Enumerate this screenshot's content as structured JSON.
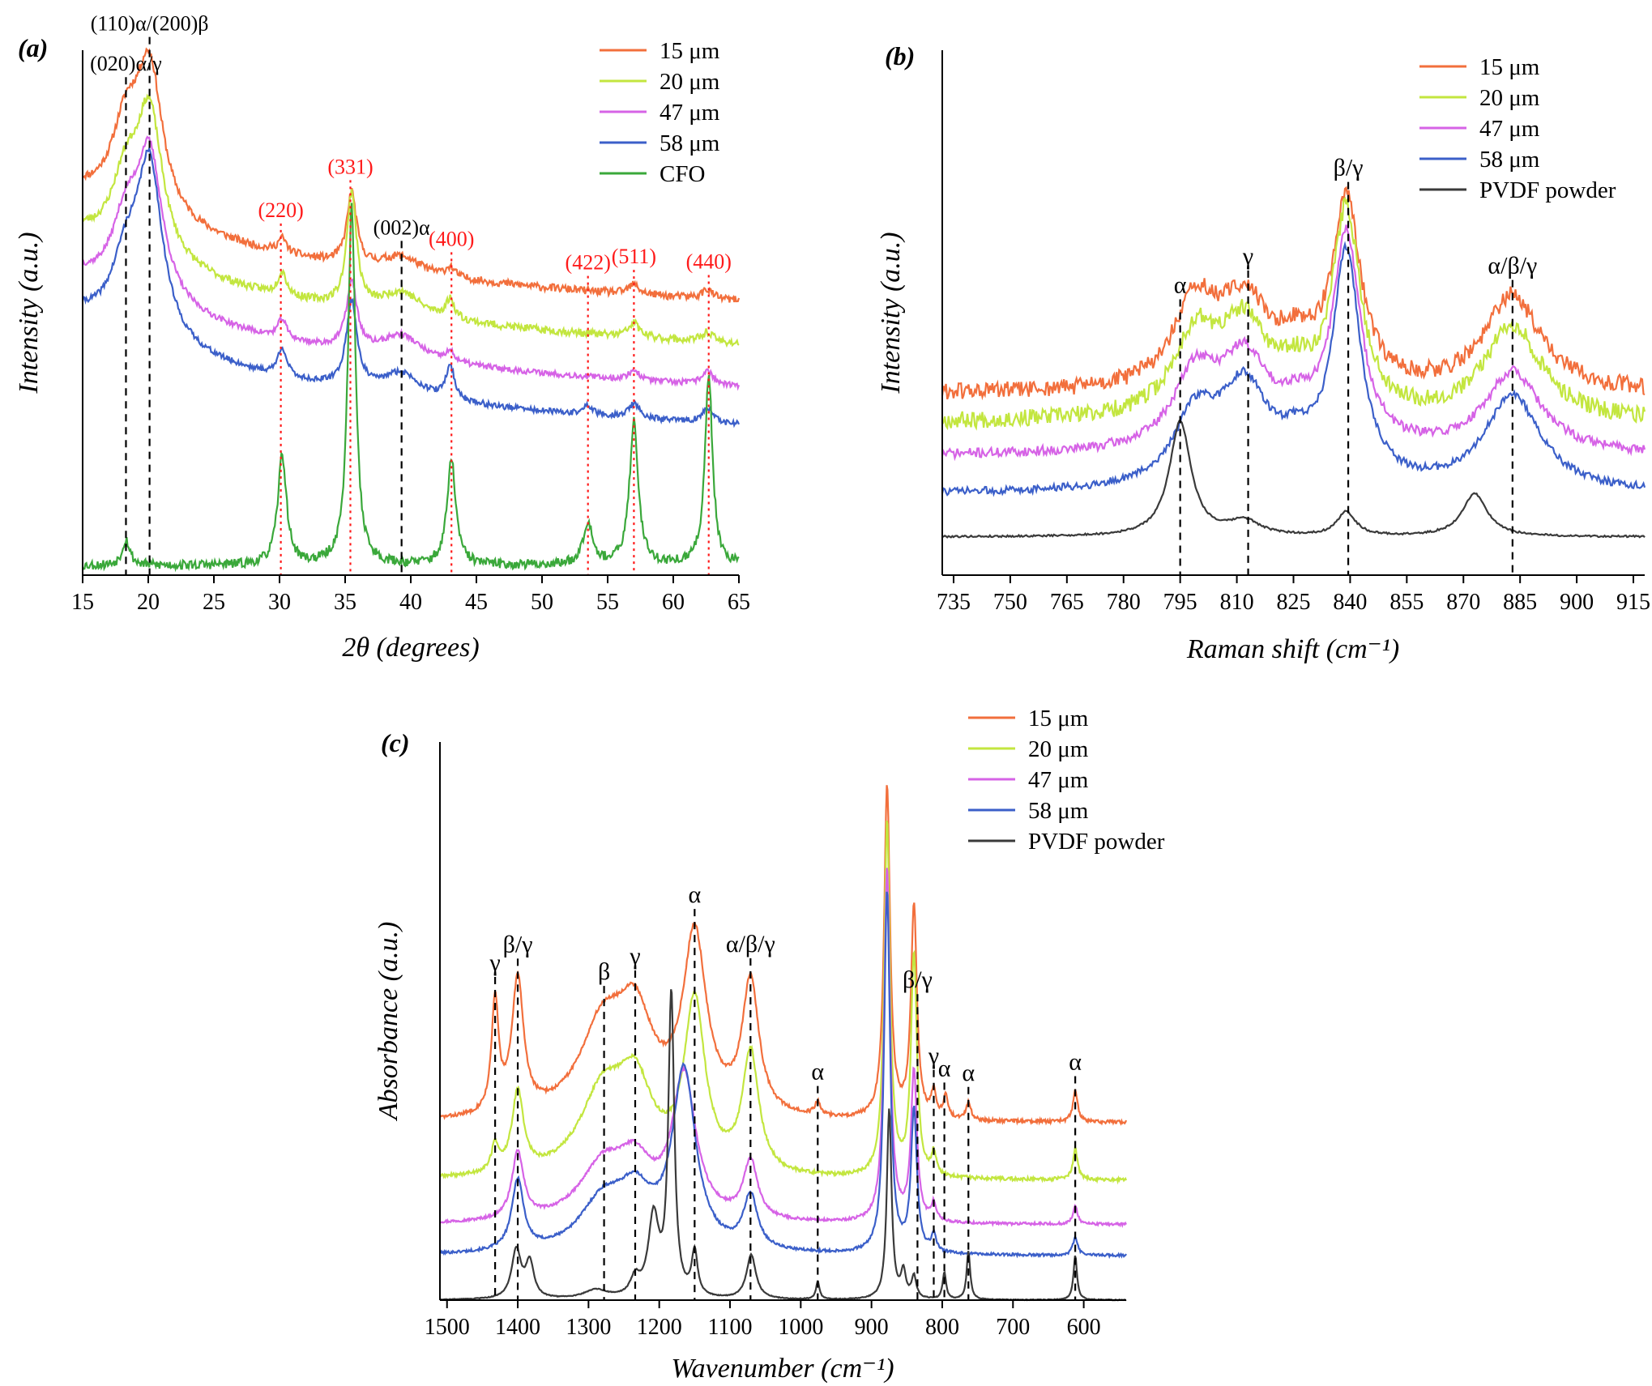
{
  "chart_data": [
    {
      "id": "a",
      "type": "line",
      "panel_label": "(a)",
      "xlabel": "2θ (degrees)",
      "ylabel": "Intensity (a.u.)",
      "xlim": [
        15,
        65
      ],
      "xticks": [
        15,
        20,
        25,
        30,
        35,
        40,
        45,
        50,
        55,
        60,
        65
      ],
      "series": [
        {
          "name": "15 μm",
          "color": "#f26f3c",
          "offset": 0.56,
          "noise": 0.008,
          "seed": 11,
          "peaks": [
            [
              18.3,
              0.16,
              1.3
            ],
            [
              20.1,
              0.3,
              1.2
            ],
            [
              30.2,
              0.03,
              0.4
            ],
            [
              35.5,
              0.15,
              0.45
            ],
            [
              39.3,
              0.035,
              1.8
            ],
            [
              43.0,
              0.02,
              0.4
            ],
            [
              57.0,
              0.02,
              0.5
            ],
            [
              62.6,
              0.02,
              0.5
            ]
          ]
        },
        {
          "name": "20 μm",
          "color": "#c3e63f",
          "offset": 0.47,
          "noise": 0.008,
          "seed": 23,
          "peaks": [
            [
              18.3,
              0.14,
              1.3
            ],
            [
              20.1,
              0.3,
              1.2
            ],
            [
              30.2,
              0.05,
              0.4
            ],
            [
              35.5,
              0.24,
              0.45
            ],
            [
              39.3,
              0.05,
              1.8
            ],
            [
              43.0,
              0.04,
              0.4
            ],
            [
              57.0,
              0.03,
              0.5
            ],
            [
              62.6,
              0.02,
              0.5
            ]
          ]
        },
        {
          "name": "47 μm",
          "color": "#d663e6",
          "offset": 0.38,
          "noise": 0.006,
          "seed": 37,
          "peaks": [
            [
              18.3,
              0.14,
              1.3
            ],
            [
              20.1,
              0.3,
              1.2
            ],
            [
              30.2,
              0.04,
              0.4
            ],
            [
              35.5,
              0.14,
              0.5
            ],
            [
              39.3,
              0.05,
              1.8
            ],
            [
              43.0,
              0.02,
              0.4
            ],
            [
              57.0,
              0.02,
              0.5
            ],
            [
              62.6,
              0.03,
              0.5
            ]
          ]
        },
        {
          "name": "58 μm",
          "color": "#3b5fc9",
          "offset": 0.3,
          "noise": 0.006,
          "seed": 41,
          "peaks": [
            [
              18.3,
              0.13,
              1.3
            ],
            [
              20.1,
              0.36,
              1.2
            ],
            [
              30.2,
              0.06,
              0.4
            ],
            [
              35.5,
              0.18,
              0.5
            ],
            [
              39.3,
              0.05,
              1.8
            ],
            [
              43.0,
              0.07,
              0.4
            ],
            [
              53.5,
              0.02,
              0.4
            ],
            [
              57.0,
              0.03,
              0.5
            ],
            [
              62.6,
              0.03,
              0.5
            ]
          ]
        },
        {
          "name": "CFO",
          "color": "#3aa83a",
          "offset": 0.0,
          "base": 0.0,
          "noise": 0.01,
          "seed": 53,
          "peaks": [
            [
              18.3,
              0.055,
              0.35
            ],
            [
              30.2,
              0.23,
              0.4
            ],
            [
              35.5,
              0.75,
              0.35
            ],
            [
              43.1,
              0.22,
              0.4
            ],
            [
              53.5,
              0.09,
              0.45
            ],
            [
              57.0,
              0.3,
              0.4
            ],
            [
              62.7,
              0.4,
              0.35
            ]
          ]
        }
      ],
      "annotations": [
        {
          "x": 18.3,
          "label": "(020)α/γ",
          "color": "#000000",
          "style": "dashed"
        },
        {
          "x": 20.1,
          "label": "(110)α/(200)β",
          "color": "#000000",
          "style": "dashed"
        },
        {
          "x": 30.1,
          "label": "(220)",
          "color": "#ff1a1a",
          "style": "dotted"
        },
        {
          "x": 35.4,
          "label": "(331)",
          "color": "#ff1a1a",
          "style": "dotted"
        },
        {
          "x": 39.3,
          "label": "(002)α",
          "color": "#000000",
          "style": "dashed"
        },
        {
          "x": 43.1,
          "label": "(400)",
          "color": "#ff1a1a",
          "style": "dotted"
        },
        {
          "x": 53.5,
          "label": "(422)",
          "color": "#ff1a1a",
          "style": "dotted"
        },
        {
          "x": 57.0,
          "label": "(511)",
          "color": "#ff1a1a",
          "style": "dotted"
        },
        {
          "x": 62.7,
          "label": "(440)",
          "color": "#ff1a1a",
          "style": "dotted"
        }
      ]
    },
    {
      "id": "b",
      "type": "line",
      "panel_label": "(b)",
      "xlabel": "Raman shift (cm⁻¹)",
      "ylabel": "Intensity (a.u.)",
      "xlim": [
        732,
        918
      ],
      "xticks": [
        735,
        750,
        765,
        780,
        795,
        810,
        825,
        840,
        855,
        870,
        885,
        900,
        915
      ],
      "series": [
        {
          "name": "15 μm",
          "color": "#f26f3c",
          "offset": 0.3,
          "noise": 0.018,
          "seed": 61,
          "peaks": [
            [
              799,
              0.17,
              7
            ],
            [
              812,
              0.17,
              8
            ],
            [
              826,
              0.07,
              6
            ],
            [
              839,
              0.38,
              4.5
            ],
            [
              883,
              0.2,
              9
            ]
          ]
        },
        {
          "name": "20 μm",
          "color": "#c3e63f",
          "offset": 0.24,
          "noise": 0.018,
          "seed": 67,
          "peaks": [
            [
              799,
              0.16,
              7
            ],
            [
              812,
              0.18,
              8
            ],
            [
              826,
              0.06,
              6
            ],
            [
              839,
              0.42,
              4.5
            ],
            [
              883,
              0.2,
              9
            ]
          ]
        },
        {
          "name": "47 μm",
          "color": "#d663e6",
          "offset": 0.17,
          "noise": 0.01,
          "seed": 71,
          "peaks": [
            [
              799,
              0.15,
              7
            ],
            [
              812,
              0.18,
              8
            ],
            [
              826,
              0.06,
              6
            ],
            [
              839,
              0.44,
              4.5
            ],
            [
              883,
              0.17,
              9
            ]
          ]
        },
        {
          "name": "58 μm",
          "color": "#3b5fc9",
          "offset": 0.09,
          "noise": 0.008,
          "seed": 73,
          "peaks": [
            [
              799,
              0.14,
              7
            ],
            [
              812,
              0.2,
              8
            ],
            [
              826,
              0.06,
              6
            ],
            [
              839,
              0.48,
              4.5
            ],
            [
              883,
              0.2,
              9
            ]
          ]
        },
        {
          "name": "PVDF powder",
          "color": "#3a3a3a",
          "offset": 0.0,
          "noise": 0.002,
          "seed": 79,
          "peaks": [
            [
              795,
              0.24,
              3.5
            ],
            [
              812,
              0.03,
              5
            ],
            [
              839,
              0.05,
              3
            ],
            [
              873,
              0.09,
              4
            ]
          ]
        }
      ],
      "annotations": [
        {
          "x": 795,
          "label": "α"
        },
        {
          "x": 813,
          "label": "γ"
        },
        {
          "x": 839.5,
          "label": "β/γ"
        },
        {
          "x": 883,
          "label": "α/β/γ"
        }
      ]
    },
    {
      "id": "c",
      "type": "line",
      "panel_label": "(c)",
      "xlabel": "Wavenumber (cm⁻¹)",
      "ylabel": "Absorbance (a.u.)",
      "xlim": [
        1510,
        540
      ],
      "x_reversed": true,
      "xticks": [
        1500,
        1400,
        1300,
        1200,
        1100,
        1000,
        900,
        800,
        700,
        600
      ],
      "series": [
        {
          "name": "15 μm",
          "color": "#f26f3c",
          "offset": 0.4,
          "noise": 0.004,
          "seed": 83,
          "peaks": [
            [
              1432,
              0.25,
              6
            ],
            [
              1400,
              0.3,
              10
            ],
            [
              1280,
              0.2,
              40
            ],
            [
              1234,
              0.2,
              30
            ],
            [
              1150,
              0.4,
              20
            ],
            [
              1071,
              0.3,
              14
            ],
            [
              976,
              0.03,
              5
            ],
            [
              878,
              0.75,
              5
            ],
            [
              840,
              0.48,
              5
            ],
            [
              812,
              0.06,
              4
            ],
            [
              795,
              0.05,
              4
            ],
            [
              763,
              0.04,
              4
            ],
            [
              612,
              0.07,
              4
            ]
          ]
        },
        {
          "name": "20 μm",
          "color": "#c3e63f",
          "offset": 0.27,
          "noise": 0.004,
          "seed": 89,
          "peaks": [
            [
              1432,
              0.06,
              6
            ],
            [
              1400,
              0.18,
              10
            ],
            [
              1280,
              0.18,
              40
            ],
            [
              1234,
              0.18,
              30
            ],
            [
              1150,
              0.38,
              18
            ],
            [
              1071,
              0.27,
              14
            ],
            [
              878,
              0.8,
              5
            ],
            [
              840,
              0.5,
              5
            ],
            [
              812,
              0.05,
              4
            ],
            [
              612,
              0.07,
              4
            ]
          ]
        },
        {
          "name": "47 μm",
          "color": "#d663e6",
          "offset": 0.17,
          "noise": 0.003,
          "seed": 97,
          "peaks": [
            [
              1400,
              0.15,
              10
            ],
            [
              1280,
              0.12,
              40
            ],
            [
              1234,
              0.11,
              30
            ],
            [
              1165,
              0.32,
              20
            ],
            [
              1071,
              0.13,
              12
            ],
            [
              878,
              0.8,
              5
            ],
            [
              840,
              0.34,
              5
            ],
            [
              812,
              0.04,
              4
            ],
            [
              612,
              0.04,
              4
            ]
          ]
        },
        {
          "name": "58 μm",
          "color": "#3b5fc9",
          "offset": 0.1,
          "noise": 0.003,
          "seed": 101,
          "peaks": [
            [
              1400,
              0.16,
              10
            ],
            [
              1280,
              0.11,
              40
            ],
            [
              1234,
              0.11,
              30
            ],
            [
              1165,
              0.4,
              20
            ],
            [
              1071,
              0.12,
              12
            ],
            [
              878,
              0.82,
              5
            ],
            [
              840,
              0.32,
              5
            ],
            [
              812,
              0.04,
              4
            ],
            [
              612,
              0.04,
              4
            ]
          ]
        },
        {
          "name": "PVDF powder",
          "color": "#3a3a3a",
          "offset": 0.0,
          "noise": 0.001,
          "seed": 103,
          "peaks": [
            [
              1402,
              0.11,
              8
            ],
            [
              1383,
              0.08,
              7
            ],
            [
              1290,
              0.02,
              20
            ],
            [
              1234,
              0.04,
              8
            ],
            [
              1208,
              0.18,
              9
            ],
            [
              1183,
              0.68,
              5
            ],
            [
              1150,
              0.1,
              5
            ],
            [
              1070,
              0.1,
              8
            ],
            [
              976,
              0.04,
              3
            ],
            [
              875,
              0.43,
              4
            ],
            [
              855,
              0.06,
              4
            ],
            [
              840,
              0.05,
              4
            ],
            [
              797,
              0.06,
              3
            ],
            [
              763,
              0.11,
              3
            ],
            [
              612,
              0.1,
              3
            ]
          ]
        }
      ],
      "annotations": [
        {
          "x": 1432,
          "label": "γ"
        },
        {
          "x": 1400,
          "label": "β/γ"
        },
        {
          "x": 1278,
          "label": "β"
        },
        {
          "x": 1234,
          "label": "γ"
        },
        {
          "x": 1150,
          "label": "α"
        },
        {
          "x": 1071,
          "label": "α/β/γ"
        },
        {
          "x": 976,
          "label": "α"
        },
        {
          "x": 835,
          "label": "β/γ"
        },
        {
          "x": 812,
          "label": "γ"
        },
        {
          "x": 797,
          "label": "α"
        },
        {
          "x": 763,
          "label": "α"
        },
        {
          "x": 612,
          "label": "α"
        }
      ]
    }
  ]
}
